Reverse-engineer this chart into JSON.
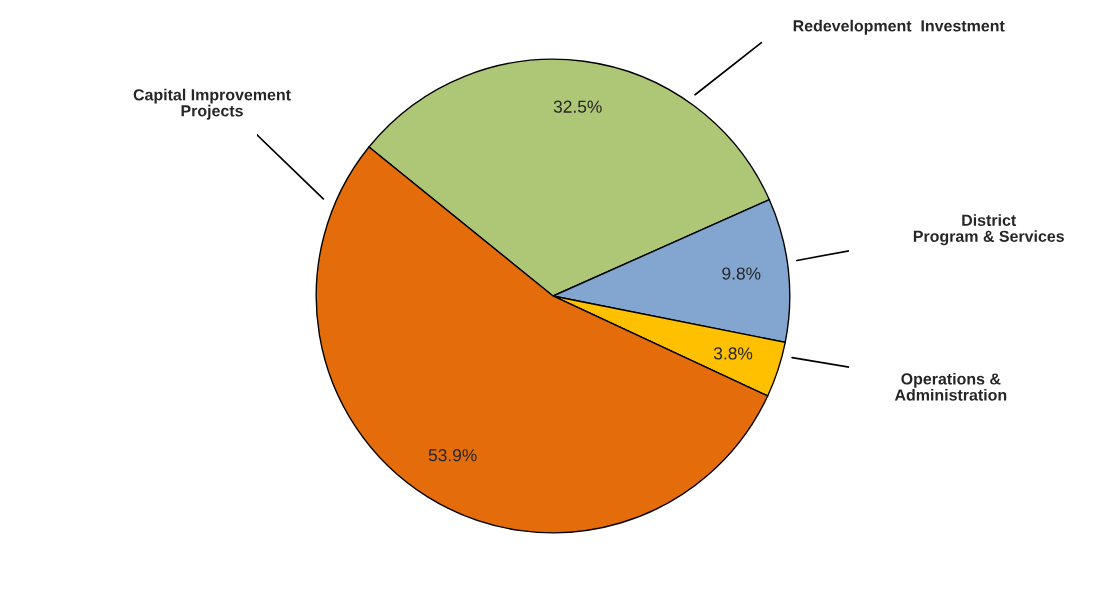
{
  "chart_data": {
    "type": "pie",
    "categories": [
      "Redevelopment  Investment",
      "District\nProgram & Services",
      "Operations &\nAdministration",
      "Capital Improvement\nProjects"
    ],
    "values": [
      32.5,
      9.8,
      3.8,
      53.9
    ],
    "colors": [
      "#adc776",
      "#82a6cf",
      "#ffc000",
      "#e46c0a"
    ],
    "value_labels": [
      "32.5%",
      "9.8%",
      "3.8%",
      "53.9%"
    ]
  }
}
